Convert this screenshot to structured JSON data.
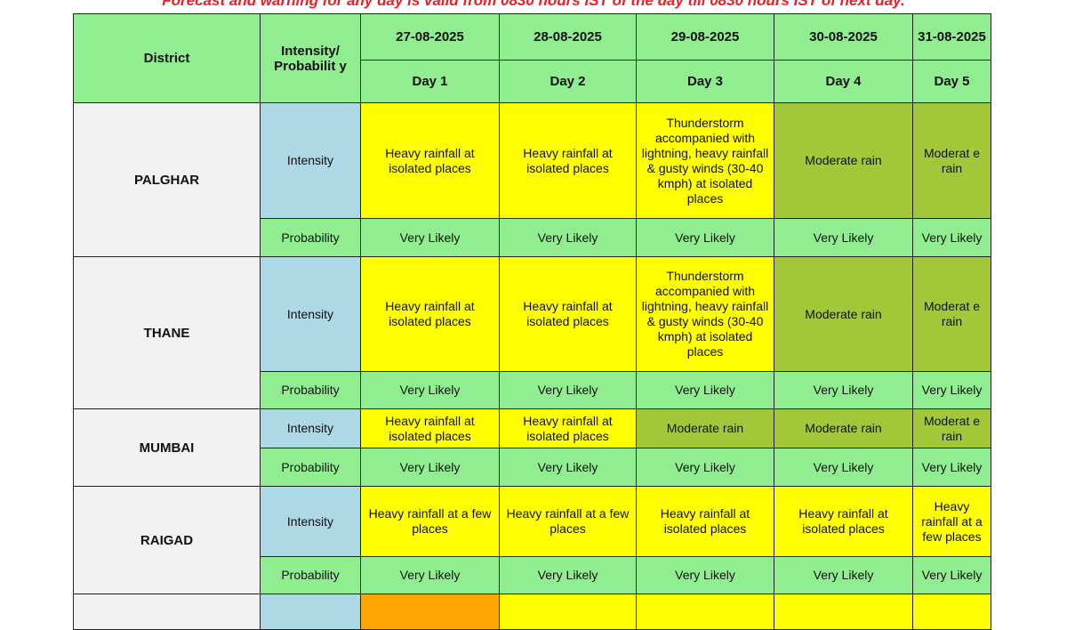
{
  "note": "Forecast and warning for any day is valid from 0830 hours IST of the day till 0830 hours IST of next day.",
  "header": {
    "district": "District",
    "intensity_probability": "Intensity/ Probabilit y",
    "dates": [
      "27-08-2025",
      "28-08-2025",
      "29-08-2025",
      "30-08-2025",
      "31-08-2025"
    ],
    "days": [
      "Day 1",
      "Day 2",
      "Day 3",
      "Day 4",
      "Day 5"
    ]
  },
  "labels": {
    "intensity": "Intensity",
    "probability": "Probability"
  },
  "colors": {
    "header": "#90ee90",
    "heavy_rain": "#ffff00",
    "moderate_rain": "#a2c83a",
    "district": "#f2f2f2",
    "label": "#add8e6",
    "orange": "#ffa500"
  },
  "rows": [
    {
      "district": "PALGHAR",
      "intensity": [
        "Heavy rainfall at isolated places",
        "Heavy rainfall at isolated places",
        "Thunderstorm accompanied with lightning, heavy rainfall & gusty winds (30-40 kmph) at isolated places",
        "Moderate rain",
        "Moderat e rain"
      ],
      "probability": [
        "Very Likely",
        "Very Likely",
        "Very Likely",
        "Very Likely",
        "Very Likely"
      ]
    },
    {
      "district": "THANE",
      "intensity": [
        "Heavy rainfall at isolated places",
        "Heavy rainfall at isolated places",
        "Thunderstorm accompanied with lightning, heavy rainfall & gusty winds (30-40 kmph) at isolated places",
        "Moderate rain",
        "Moderat e rain"
      ],
      "probability": [
        "Very Likely",
        "Very Likely",
        "Very Likely",
        "Very Likely",
        "Very Likely"
      ]
    },
    {
      "district": "MUMBAI",
      "intensity": [
        "Heavy rainfall at isolated places",
        "Heavy rainfall at isolated places",
        "Moderate rain",
        "Moderate rain",
        "Moderat e rain"
      ],
      "probability": [
        "Very Likely",
        "Very Likely",
        "Very Likely",
        "Very Likely",
        "Very Likely"
      ]
    },
    {
      "district": "RAIGAD",
      "intensity": [
        "Heavy rainfall at a few places",
        "Heavy rainfall at a few places",
        "Heavy rainfall at isolated places",
        "Heavy rainfall at isolated places",
        "Heavy rainfall at a few places"
      ],
      "probability": [
        "Very Likely",
        "Very Likely",
        "Very Likely",
        "Very Likely",
        "Very Likely"
      ]
    }
  ]
}
